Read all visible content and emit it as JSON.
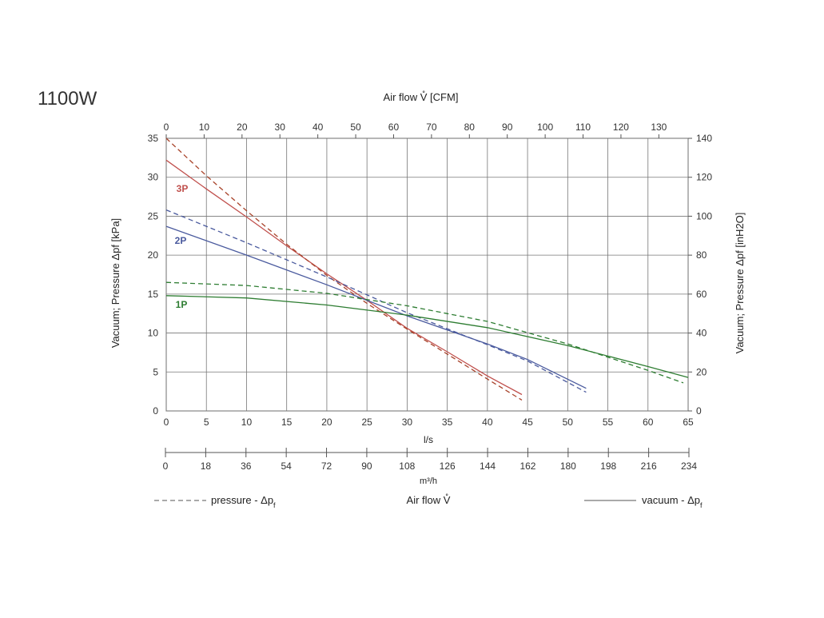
{
  "page": {
    "title": "1100W"
  },
  "chart_data": {
    "type": "line",
    "top_axis_label": "Air flow V̊ [CFM]",
    "top_ticks": [
      0,
      10,
      20,
      30,
      40,
      50,
      60,
      70,
      80,
      90,
      100,
      110,
      120,
      130
    ],
    "xlabel": "l/s",
    "x_ticks": [
      0,
      5,
      10,
      15,
      20,
      25,
      30,
      35,
      40,
      45,
      50,
      55,
      60,
      65
    ],
    "xlim": [
      0,
      65
    ],
    "second_axis_label": "m³/h",
    "second_ticks": [
      0,
      18,
      36,
      54,
      72,
      90,
      108,
      126,
      144,
      162,
      180,
      198,
      216,
      234
    ],
    "ylabel": "Vacuum; Pressure Δpf [kPa]",
    "ylabel_right": "Vacuum; Pressure Δpf [inH2O]",
    "y_ticks": [
      0,
      5,
      10,
      15,
      20,
      25,
      30,
      35
    ],
    "ylim": [
      0,
      35
    ],
    "y_right_ticks": [
      0,
      20,
      40,
      60,
      80,
      100,
      120,
      140
    ],
    "grid": true,
    "legend": {
      "pressure": "pressure - Δpf",
      "vacuum": "vacuum - Δpf",
      "center": "Air flow V̊"
    },
    "series": [
      {
        "name": "3P",
        "mode": "vacuum",
        "color": "#c0504d",
        "x": [
          0,
          5,
          10,
          15,
          20,
          25,
          30,
          35,
          40,
          44.3
        ],
        "y": [
          32.2,
          28.5,
          24.9,
          21.2,
          17.6,
          14.2,
          10.6,
          7.6,
          4.5,
          2.1
        ]
      },
      {
        "name": "3P",
        "mode": "pressure",
        "color": "#a8432a",
        "x": [
          0,
          5,
          10,
          15,
          20,
          25,
          30,
          35,
          40,
          44.3
        ],
        "y": [
          35.0,
          30.2,
          25.7,
          21.4,
          17.4,
          13.8,
          10.5,
          7.3,
          4.1,
          1.4
        ]
      },
      {
        "name": "2P",
        "mode": "vacuum",
        "color": "#4a5a9e",
        "x": [
          0,
          10,
          20,
          30,
          40,
          45,
          52.3
        ],
        "y": [
          23.7,
          20.0,
          16.2,
          12.2,
          8.6,
          6.6,
          2.9
        ]
      },
      {
        "name": "2P",
        "mode": "pressure",
        "color": "#4a5a9e",
        "x": [
          0,
          10,
          20,
          30,
          40,
          45,
          52.3
        ],
        "y": [
          25.8,
          21.6,
          17.2,
          12.6,
          8.5,
          6.4,
          2.4
        ]
      },
      {
        "name": "1P",
        "mode": "vacuum",
        "color": "#2e7d32",
        "x": [
          0,
          10,
          20,
          30,
          40,
          50,
          60,
          65
        ],
        "y": [
          14.8,
          14.5,
          13.6,
          12.3,
          10.7,
          8.4,
          5.7,
          4.3
        ]
      },
      {
        "name": "1P",
        "mode": "pressure",
        "color": "#2e7d32",
        "x": [
          0,
          10,
          20,
          30,
          40,
          50,
          60,
          64.4
        ],
        "y": [
          16.5,
          16.1,
          15.1,
          13.5,
          11.5,
          8.6,
          5.2,
          3.6
        ]
      }
    ]
  }
}
